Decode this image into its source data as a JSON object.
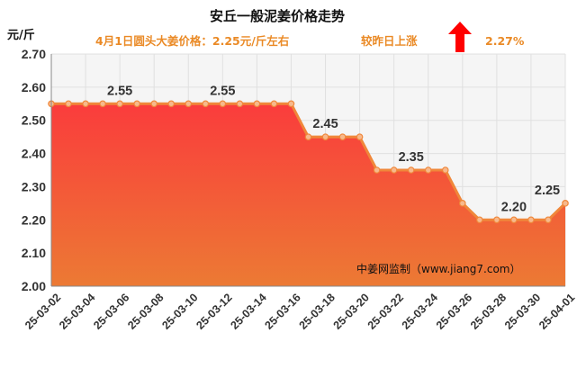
{
  "chart_data": {
    "type": "area",
    "title": "安丘一般泥姜价格走势",
    "subtitle": {
      "price_text": "4月1日圆头大姜价格：2.25元/斤左右",
      "change_text": "较昨日上涨",
      "change_value": "2.27%",
      "direction": "up"
    },
    "y_unit_label": "元/斤",
    "ylim": [
      2.0,
      2.7
    ],
    "yticks": [
      "2.00",
      "2.10",
      "2.20",
      "2.30",
      "2.40",
      "2.50",
      "2.60",
      "2.70"
    ],
    "x": [
      "25-03-02",
      "25-03-03",
      "25-03-04",
      "25-03-05",
      "25-03-06",
      "25-03-07",
      "25-03-08",
      "25-03-09",
      "25-03-10",
      "25-03-11",
      "25-03-12",
      "25-03-13",
      "25-03-14",
      "25-03-15",
      "25-03-16",
      "25-03-17",
      "25-03-18",
      "25-03-19",
      "25-03-20",
      "25-03-21",
      "25-03-22",
      "25-03-23",
      "25-03-24",
      "25-03-25",
      "25-03-26",
      "25-03-27",
      "25-03-28",
      "25-03-29",
      "25-03-30",
      "25-03-31",
      "25-04-01"
    ],
    "values": [
      2.55,
      2.55,
      2.55,
      2.55,
      2.55,
      2.55,
      2.55,
      2.55,
      2.55,
      2.55,
      2.55,
      2.55,
      2.55,
      2.55,
      2.55,
      2.45,
      2.45,
      2.45,
      2.45,
      2.35,
      2.35,
      2.35,
      2.35,
      2.35,
      2.25,
      2.2,
      2.2,
      2.2,
      2.2,
      2.2,
      2.25
    ],
    "xtick_labels": [
      "25-03-02",
      "25-03-04",
      "25-03-06",
      "25-03-08",
      "25-03-10",
      "25-03-12",
      "25-03-14",
      "25-03-16",
      "25-03-18",
      "25-03-20",
      "25-03-22",
      "25-03-24",
      "25-03-26",
      "25-03-28",
      "25-03-30",
      "25-04-01"
    ],
    "data_labels": [
      {
        "date": "25-03-06",
        "text": "2.55"
      },
      {
        "date": "25-03-12",
        "text": "2.55"
      },
      {
        "date": "25-03-18",
        "text": "2.45"
      },
      {
        "date": "25-03-23",
        "text": "2.35"
      },
      {
        "date": "25-03-29",
        "text": "2.20"
      },
      {
        "date": "25-04-01",
        "text": "2.25"
      }
    ],
    "grid": true,
    "colors": {
      "area_top": "#fa3c3c",
      "area_bottom": "#ec7a34",
      "line": "#f0873a",
      "marker_fill": "#f7b98c",
      "subtitle": "#ea8a26",
      "arrow": "#ff0000",
      "grid_bg": "#f5f5f5",
      "grid_line": "#e0e0e0"
    }
  },
  "watermark": "中姜网监制（www.jiang7.com）"
}
